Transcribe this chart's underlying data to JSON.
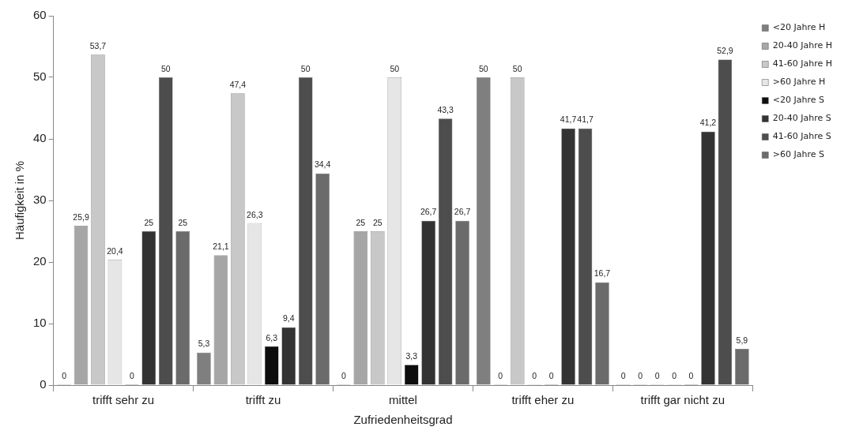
{
  "chart_data": {
    "type": "bar",
    "xlabel": "Zufriedenheitsgrad",
    "ylabel": "Häufigkeit in %",
    "categories": [
      "trifft sehr zu",
      "trifft zu",
      "mittel",
      "trifft eher zu",
      "trifft gar nicht zu"
    ],
    "series": [
      {
        "name": "<20 Jahre H",
        "color": "#7f7f7f",
        "values": [
          0,
          5.3,
          0,
          50,
          0
        ],
        "value_labels": [
          "0",
          "5,3",
          "0",
          "50",
          "0"
        ]
      },
      {
        "name": "20-40 Jahre H",
        "color": "#a6a6a6",
        "values": [
          25.9,
          21.1,
          25,
          0,
          0
        ],
        "value_labels": [
          "25,9",
          "21,1",
          "25",
          "0",
          "0"
        ]
      },
      {
        "name": "41-60 Jahre H",
        "color": "#c8c8c8",
        "values": [
          53.7,
          47.4,
          25,
          50,
          0
        ],
        "value_labels": [
          "53,7",
          "47,4",
          "25",
          "50",
          "0"
        ]
      },
      {
        "name": ">60 Jahre H",
        "color": "#e6e6e6",
        "values": [
          20.4,
          26.3,
          50,
          0,
          0
        ],
        "value_labels": [
          "20,4",
          "26,3",
          "50",
          "0",
          "0"
        ]
      },
      {
        "name": "<20 Jahre S",
        "color": "#0d0d0d",
        "values": [
          0,
          6.3,
          3.3,
          0,
          0
        ],
        "value_labels": [
          "0",
          "6,3",
          "3,3",
          "0",
          "0"
        ]
      },
      {
        "name": "20-40 Jahre S",
        "color": "#333333",
        "values": [
          25,
          9.4,
          26.7,
          41.7,
          41.2
        ],
        "value_labels": [
          "25",
          "9,4",
          "26,7",
          "41,7",
          "41,2"
        ]
      },
      {
        "name": "41-60 Jahre S",
        "color": "#4d4d4d",
        "values": [
          50,
          50,
          43.3,
          41.7,
          52.9
        ],
        "value_labels": [
          "50",
          "50",
          "43,3",
          "41,7",
          "52,9"
        ]
      },
      {
        "name": ">60 Jahre S",
        "color": "#6b6b6b",
        "values": [
          25,
          34.4,
          26.7,
          16.7,
          5.9
        ],
        "value_labels": [
          "25",
          "34,4",
          "26,7",
          "16,7",
          "5,9"
        ]
      }
    ],
    "ylim": [
      0,
      60
    ],
    "yticks": [
      0,
      10,
      20,
      30,
      40,
      50,
      60
    ],
    "grid": false,
    "legend": "top right"
  }
}
